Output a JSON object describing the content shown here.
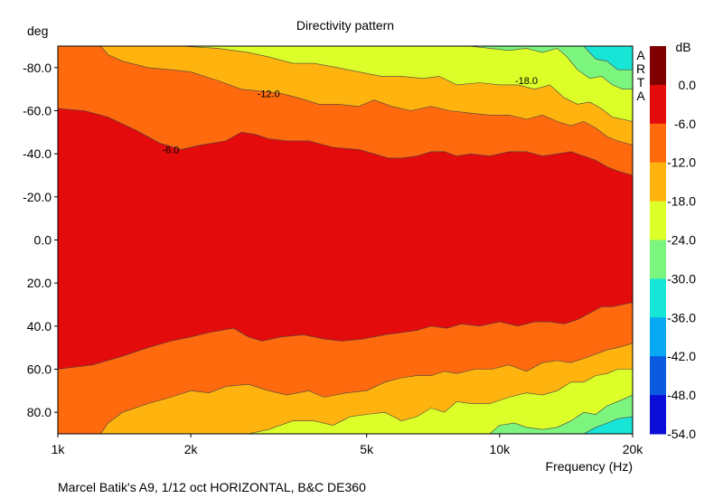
{
  "chart_data": {
    "type": "heatmap",
    "title": "Directivity pattern",
    "xlabel": "Frequency (Hz)",
    "ylabel": "deg",
    "caption": "Marcel Batik's A9, 1/12 oct HORIZONTAL, B&C DE360",
    "brand": "ARTA",
    "x_scale": "log",
    "xlim": [
      1000,
      20000
    ],
    "ylim": [
      -90,
      90
    ],
    "x_ticks": [
      {
        "value": 1000,
        "label": "1k"
      },
      {
        "value": 2000,
        "label": "2k"
      },
      {
        "value": 5000,
        "label": "5k"
      },
      {
        "value": 10000,
        "label": "10k"
      },
      {
        "value": 20000,
        "label": "20k"
      }
    ],
    "y_ticks": [
      {
        "value": -80,
        "label": "-80.0"
      },
      {
        "value": -60,
        "label": "-60.0"
      },
      {
        "value": -40,
        "label": "-40.0"
      },
      {
        "value": -20,
        "label": "-20.0"
      },
      {
        "value": 0,
        "label": "0.0"
      },
      {
        "value": 20,
        "label": "20.0"
      },
      {
        "value": 40,
        "label": "40.0"
      },
      {
        "value": 60,
        "label": "60.0"
      },
      {
        "value": 80,
        "label": "80.0"
      }
    ],
    "colorbar": {
      "unit": "dB",
      "levels": [
        {
          "max": 6,
          "min": 0,
          "color": "#7f0000"
        },
        {
          "max": 0,
          "min": -6,
          "color": "#e30b0b"
        },
        {
          "max": -6,
          "min": -12,
          "color": "#ff6a0e"
        },
        {
          "max": -12,
          "min": -18,
          "color": "#ffb30f"
        },
        {
          "max": -18,
          "min": -24,
          "color": "#dcff2a"
        },
        {
          "max": -24,
          "min": -30,
          "color": "#7cf57e"
        },
        {
          "max": -30,
          "min": -36,
          "color": "#17e6d6"
        },
        {
          "max": -36,
          "min": -42,
          "color": "#08a8f2"
        },
        {
          "max": -42,
          "min": -48,
          "color": "#0b5ae0"
        },
        {
          "max": -48,
          "min": -54,
          "color": "#0c0ed8"
        }
      ],
      "tick_labels": [
        "0.0",
        "-6.0",
        "-12.0",
        "-18.0",
        "-24.0",
        "-30.0",
        "-36.0",
        "-42.0",
        "-48.0",
        "-54.0"
      ]
    },
    "contour_labels": [
      {
        "text": "-6.0",
        "freq": 1800,
        "deg": -42
      },
      {
        "text": "-12.0",
        "freq": 3000,
        "deg": -68
      },
      {
        "text": "-18.0",
        "freq": 11500,
        "deg": -74
      }
    ],
    "contours_upper": [
      {
        "level": -6,
        "points": [
          [
            1000,
            -61
          ],
          [
            1150,
            -60
          ],
          [
            1300,
            -57
          ],
          [
            1500,
            -51
          ],
          [
            1700,
            -45
          ],
          [
            1900,
            -42
          ],
          [
            2100,
            -44
          ],
          [
            2400,
            -46
          ],
          [
            2600,
            -50
          ],
          [
            2800,
            -49
          ],
          [
            3000,
            -47
          ],
          [
            3300,
            -46
          ],
          [
            3700,
            -46
          ],
          [
            4200,
            -43
          ],
          [
            4800,
            -42
          ],
          [
            5200,
            -40
          ],
          [
            5600,
            -38
          ],
          [
            6000,
            -38
          ],
          [
            6500,
            -39
          ],
          [
            7000,
            -41
          ],
          [
            7500,
            -41
          ],
          [
            8000,
            -39
          ],
          [
            8600,
            -40
          ],
          [
            9500,
            -39
          ],
          [
            10500,
            -41
          ],
          [
            11500,
            -41
          ],
          [
            12500,
            -39
          ],
          [
            13500,
            -40
          ],
          [
            14500,
            -41
          ],
          [
            15500,
            -39
          ],
          [
            16500,
            -37
          ],
          [
            17500,
            -34
          ],
          [
            18500,
            -32
          ],
          [
            20000,
            -30
          ]
        ]
      },
      {
        "level": -12,
        "points": [
          [
            1000,
            -90
          ],
          [
            1250,
            -90
          ],
          [
            1300,
            -86
          ],
          [
            1400,
            -83
          ],
          [
            1600,
            -80
          ],
          [
            1800,
            -79
          ],
          [
            2000,
            -78
          ],
          [
            2300,
            -74
          ],
          [
            2600,
            -70
          ],
          [
            2900,
            -69
          ],
          [
            3200,
            -68
          ],
          [
            3500,
            -66
          ],
          [
            3900,
            -63
          ],
          [
            4300,
            -63
          ],
          [
            4800,
            -62
          ],
          [
            5200,
            -65
          ],
          [
            5700,
            -62
          ],
          [
            6300,
            -60
          ],
          [
            7000,
            -62
          ],
          [
            7700,
            -60
          ],
          [
            8500,
            -59
          ],
          [
            9500,
            -58
          ],
          [
            10500,
            -58
          ],
          [
            11500,
            -56
          ],
          [
            12500,
            -58
          ],
          [
            13500,
            -55
          ],
          [
            14500,
            -53
          ],
          [
            15500,
            -55
          ],
          [
            16500,
            -52
          ],
          [
            17500,
            -48
          ],
          [
            18500,
            -46
          ],
          [
            20000,
            -44
          ]
        ]
      },
      {
        "level": -18,
        "points": [
          [
            1900,
            -90
          ],
          [
            2300,
            -89
          ],
          [
            2700,
            -87
          ],
          [
            3000,
            -85
          ],
          [
            3400,
            -82
          ],
          [
            3800,
            -82
          ],
          [
            4300,
            -80
          ],
          [
            4800,
            -78
          ],
          [
            5400,
            -76
          ],
          [
            6000,
            -76
          ],
          [
            6700,
            -75
          ],
          [
            7300,
            -76
          ],
          [
            8000,
            -72
          ],
          [
            9000,
            -73
          ],
          [
            10000,
            -72
          ],
          [
            11000,
            -72
          ],
          [
            12000,
            -70
          ],
          [
            13000,
            -72
          ],
          [
            14000,
            -66
          ],
          [
            15000,
            -63
          ],
          [
            16000,
            -64
          ],
          [
            17000,
            -61
          ],
          [
            18000,
            -57
          ],
          [
            19000,
            -56
          ],
          [
            20000,
            -55
          ]
        ]
      },
      {
        "level": -24,
        "points": [
          [
            8500,
            -90
          ],
          [
            9500,
            -89
          ],
          [
            10500,
            -88
          ],
          [
            11500,
            -89
          ],
          [
            12500,
            -87
          ],
          [
            13500,
            -89
          ],
          [
            14200,
            -85
          ],
          [
            15000,
            -79
          ],
          [
            16000,
            -75
          ],
          [
            17000,
            -76
          ],
          [
            18000,
            -72
          ],
          [
            19000,
            -70
          ],
          [
            20000,
            -70
          ]
        ]
      },
      {
        "level": -30,
        "points": [
          [
            15500,
            -90
          ],
          [
            16500,
            -84
          ],
          [
            17500,
            -83
          ],
          [
            18500,
            -79
          ],
          [
            20000,
            -79
          ]
        ]
      }
    ],
    "contours_lower": [
      {
        "level": -6,
        "points": [
          [
            1000,
            60
          ],
          [
            1200,
            58
          ],
          [
            1400,
            54
          ],
          [
            1600,
            50
          ],
          [
            1800,
            47
          ],
          [
            2000,
            45
          ],
          [
            2200,
            43
          ],
          [
            2500,
            41
          ],
          [
            2700,
            45
          ],
          [
            2900,
            47
          ],
          [
            3200,
            45
          ],
          [
            3600,
            44
          ],
          [
            4000,
            46
          ],
          [
            4400,
            47
          ],
          [
            4900,
            46
          ],
          [
            5500,
            44
          ],
          [
            6000,
            43
          ],
          [
            6500,
            42
          ],
          [
            7000,
            40
          ],
          [
            7600,
            41
          ],
          [
            8200,
            39
          ],
          [
            9000,
            40
          ],
          [
            10000,
            38
          ],
          [
            11000,
            40
          ],
          [
            12000,
            38
          ],
          [
            13000,
            38
          ],
          [
            14000,
            39
          ],
          [
            15000,
            37
          ],
          [
            16000,
            34
          ],
          [
            17000,
            31
          ],
          [
            18000,
            31
          ],
          [
            19000,
            30
          ],
          [
            20000,
            29
          ]
        ]
      },
      {
        "level": -12,
        "points": [
          [
            1000,
            90
          ],
          [
            1250,
            90
          ],
          [
            1300,
            85
          ],
          [
            1400,
            80
          ],
          [
            1600,
            76
          ],
          [
            1800,
            73
          ],
          [
            2000,
            70
          ],
          [
            2200,
            71
          ],
          [
            2400,
            68
          ],
          [
            2700,
            67
          ],
          [
            3000,
            70
          ],
          [
            3300,
            72
          ],
          [
            3700,
            70
          ],
          [
            4000,
            73
          ],
          [
            4500,
            71
          ],
          [
            5000,
            70
          ],
          [
            5500,
            66
          ],
          [
            6000,
            64
          ],
          [
            6500,
            63
          ],
          [
            7000,
            63
          ],
          [
            7500,
            61
          ],
          [
            8000,
            62
          ],
          [
            8800,
            60
          ],
          [
            9600,
            60
          ],
          [
            10500,
            58
          ],
          [
            11500,
            61
          ],
          [
            12500,
            57
          ],
          [
            13500,
            56
          ],
          [
            14500,
            57
          ],
          [
            15500,
            55
          ],
          [
            16500,
            53
          ],
          [
            17500,
            51
          ],
          [
            18500,
            50
          ],
          [
            20000,
            48
          ]
        ]
      },
      {
        "level": -18,
        "points": [
          [
            2700,
            90
          ],
          [
            3000,
            88
          ],
          [
            3400,
            84
          ],
          [
            3800,
            84
          ],
          [
            4200,
            86
          ],
          [
            4600,
            82
          ],
          [
            5000,
            81
          ],
          [
            5500,
            80
          ],
          [
            6000,
            84
          ],
          [
            6500,
            82
          ],
          [
            7000,
            78
          ],
          [
            7500,
            80
          ],
          [
            8000,
            75
          ],
          [
            8600,
            76
          ],
          [
            9500,
            76
          ],
          [
            10500,
            73
          ],
          [
            11500,
            71
          ],
          [
            12500,
            72
          ],
          [
            13500,
            70
          ],
          [
            14500,
            66
          ],
          [
            15500,
            66
          ],
          [
            16500,
            63
          ],
          [
            17500,
            62
          ],
          [
            18500,
            60
          ],
          [
            20000,
            60
          ]
        ]
      },
      {
        "level": -24,
        "points": [
          [
            9500,
            90
          ],
          [
            10000,
            86
          ],
          [
            10800,
            85
          ],
          [
            11500,
            87
          ],
          [
            12500,
            88
          ],
          [
            13500,
            87
          ],
          [
            14500,
            84
          ],
          [
            15500,
            80
          ],
          [
            16500,
            81
          ],
          [
            17500,
            77
          ],
          [
            18500,
            75
          ],
          [
            20000,
            72
          ]
        ]
      },
      {
        "level": -30,
        "points": [
          [
            15500,
            90
          ],
          [
            16500,
            87
          ],
          [
            17500,
            85
          ],
          [
            18500,
            83
          ],
          [
            20000,
            82
          ]
        ]
      }
    ]
  }
}
